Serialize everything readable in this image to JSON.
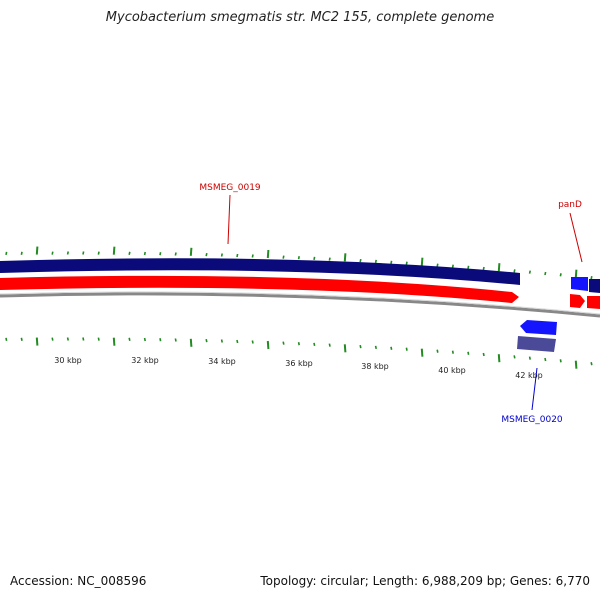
{
  "header": {
    "title": "Mycobacterium smegmatis str. MC2 155, complete genome"
  },
  "footer": {
    "accession": "Accession: NC_008596",
    "summary": "Topology: circular; Length: 6,988,209 bp; Genes: 6,770"
  },
  "colors": {
    "forward_cds": "#0a0a7a",
    "reverse_cds": "#ff0000",
    "backbone": "#888888",
    "ticks": "#228b22",
    "label_red": "#cc0000",
    "label_blue": "#0000cc",
    "blue_gene": "#1414ff",
    "purple_gene": "#4b4a99"
  },
  "scale": {
    "labels": [
      "30 kbp",
      "32 kbp",
      "34 kbp",
      "36 kbp",
      "38 kbp",
      "40 kbp",
      "42 kbp"
    ]
  },
  "genes": [
    {
      "name": "MSMEG_0019",
      "color_key": "label_red"
    },
    {
      "name": "panD",
      "color_key": "label_red"
    },
    {
      "name": "MSMEG_0020",
      "color_key": "label_blue"
    }
  ]
}
